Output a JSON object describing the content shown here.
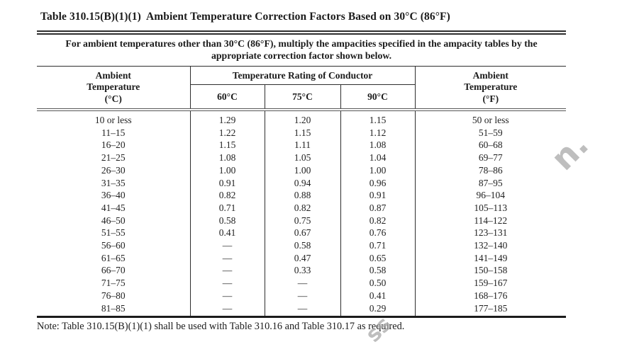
{
  "title": "Table 310.15(B)(1)(1)  Ambient Temperature Correction Factors Based on 30°C (86°F)",
  "table": {
    "header_note": "For ambient temperatures other than 30°C (86°F), multiply the ampacities specified in the ampacity tables by the\nappropriate correction factor shown below.",
    "col_ambient_c": "Ambient\nTemperature\n(°C)",
    "conductor_span": "Temperature Rating of Conductor",
    "ratings": [
      "60°C",
      "75°C",
      "90°C"
    ],
    "col_ambient_f": "Ambient\nTemperature\n(°F)",
    "rows": [
      [
        "10 or less",
        "1.29",
        "1.20",
        "1.15",
        "50 or less"
      ],
      [
        "11–15",
        "1.22",
        "1.15",
        "1.12",
        "51–59"
      ],
      [
        "16–20",
        "1.15",
        "1.11",
        "1.08",
        "60–68"
      ],
      [
        "21–25",
        "1.08",
        "1.05",
        "1.04",
        "69–77"
      ],
      [
        "26–30",
        "1.00",
        "1.00",
        "1.00",
        "78–86"
      ],
      [
        "31–35",
        "0.91",
        "0.94",
        "0.96",
        "87–95"
      ],
      [
        "36–40",
        "0.82",
        "0.88",
        "0.91",
        "96–104"
      ],
      [
        "41–45",
        "0.71",
        "0.82",
        "0.87",
        "105–113"
      ],
      [
        "46–50",
        "0.58",
        "0.75",
        "0.82",
        "114–122"
      ],
      [
        "51–55",
        "0.41",
        "0.67",
        "0.76",
        "123–131"
      ],
      [
        "56–60",
        "—",
        "0.58",
        "0.71",
        "132–140"
      ],
      [
        "61–65",
        "—",
        "0.47",
        "0.65",
        "141–149"
      ],
      [
        "66–70",
        "—",
        "0.33",
        "0.58",
        "150–158"
      ],
      [
        "71–75",
        "—",
        "—",
        "0.50",
        "159–167"
      ],
      [
        "76–80",
        "—",
        "—",
        "0.41",
        "168–176"
      ],
      [
        "81–85",
        "—",
        "—",
        "0.29",
        "177–185"
      ]
    ]
  },
  "footnote": "Note: Table 310.15(B)(1)(1) shall be used with Table 310.16 and Table 310.17 as required.",
  "watermark": {
    "fragment_right": "n.",
    "fragment_bottom": "ss",
    "color": "#a9a9a9"
  }
}
